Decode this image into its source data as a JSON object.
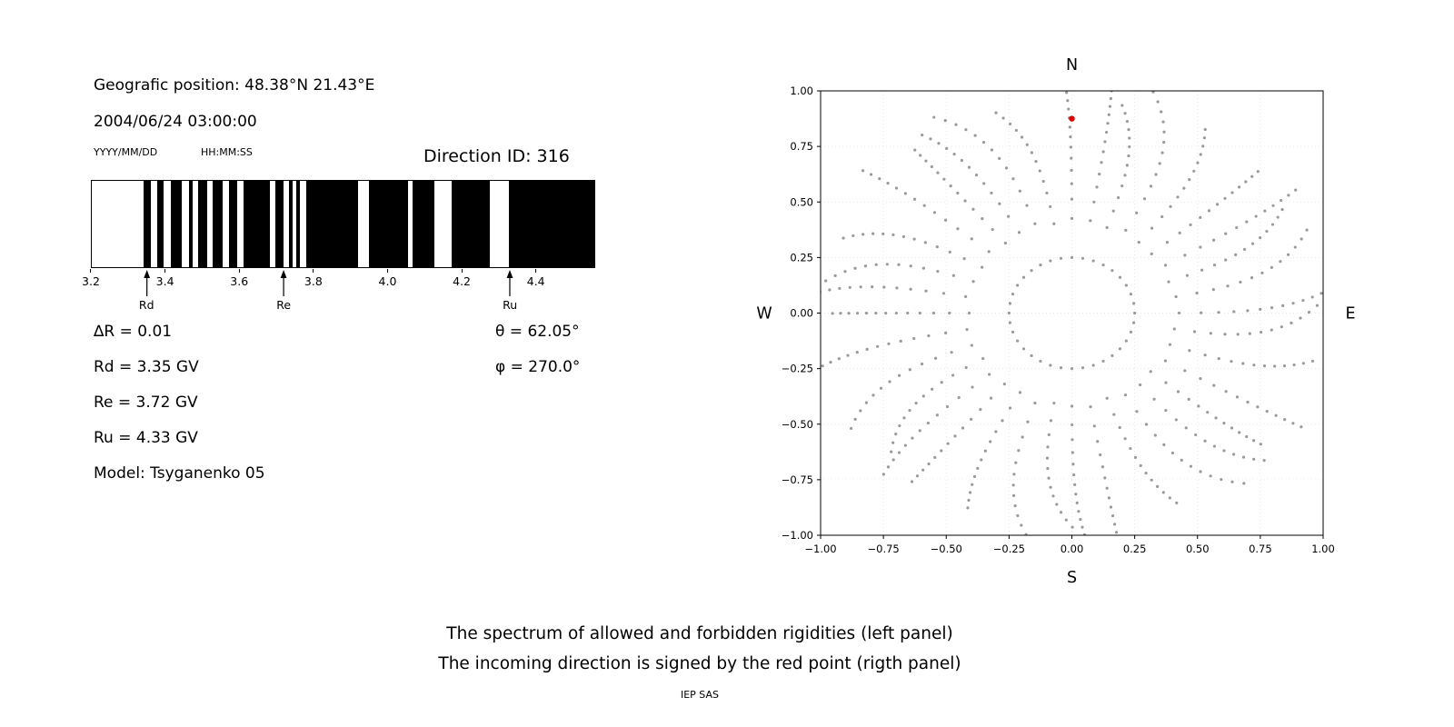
{
  "page": {
    "background": "#ffffff"
  },
  "left_panel": {
    "geographic_position": "Geografic position: 48.38°N 21.43°E",
    "datetime": "2004/06/24 03:00:00",
    "date_format_hint": "YYYY/MM/DD",
    "time_format_hint": "HH:MM:SS",
    "direction_id": "Direction ID: 316",
    "delta_r": "∆R = 0.01",
    "rd": "Rd = 3.35 GV",
    "re": "Re = 3.72 GV",
    "ru": "Ru = 4.33 GV",
    "model": "Model: Tsyganenko 05",
    "theta": "θ = 62.05°",
    "phi": "φ = 270.0°"
  },
  "caption": {
    "line1": "The spectrum of allowed and forbidden rigidities (left panel)",
    "line2": "The incoming direction is signed by the red point (rigth panel)",
    "credit": "IEP SAS"
  },
  "chart_data": [
    {
      "type": "bar",
      "description": "Spectrum of allowed (white) and forbidden (black) rigidities in GV",
      "x_range": [
        3.2,
        4.56
      ],
      "x_tick_values": [
        3.2,
        3.4,
        3.6,
        3.8,
        4.0,
        4.2,
        4.4
      ],
      "x_tick_labels": [
        "3.2",
        "3.4",
        "3.6",
        "3.8",
        "4.0",
        "4.2",
        "4.4"
      ],
      "band_color": "#000000",
      "forbidden_bands": [
        [
          3.34,
          3.36
        ],
        [
          3.377,
          3.395
        ],
        [
          3.413,
          3.443
        ],
        [
          3.462,
          3.472
        ],
        [
          3.487,
          3.512
        ],
        [
          3.526,
          3.554
        ],
        [
          3.571,
          3.594
        ],
        [
          3.61,
          3.682
        ],
        [
          3.697,
          3.718
        ],
        [
          3.734,
          3.744
        ],
        [
          3.753,
          3.764
        ],
        [
          3.78,
          3.92
        ],
        [
          3.95,
          4.055
        ],
        [
          4.068,
          4.126
        ],
        [
          4.174,
          4.278
        ],
        [
          4.33,
          4.56
        ]
      ],
      "markers": [
        {
          "label": "Rd",
          "value": 3.35
        },
        {
          "label": "Re",
          "value": 3.72
        },
        {
          "label": "Ru",
          "value": 4.33
        }
      ]
    },
    {
      "type": "scatter",
      "description": "Asymptotic incoming directions; red point marks the incoming direction",
      "xlim": [
        -1,
        1
      ],
      "ylim": [
        -1,
        1
      ],
      "x_ticks": [
        -1,
        -0.75,
        -0.5,
        -0.25,
        0,
        0.25,
        0.5,
        0.75,
        1
      ],
      "y_ticks": [
        -1,
        -0.75,
        -0.5,
        -0.25,
        0,
        0.25,
        0.5,
        0.75,
        1
      ],
      "tick_labels": [
        "−1.00",
        "−0.75",
        "−0.50",
        "−0.25",
        "0.00",
        "0.25",
        "0.50",
        "0.75",
        "1.00"
      ],
      "compass": {
        "north": "N",
        "south": "S",
        "west": "W",
        "east": "E"
      },
      "grid": true,
      "grid_color": "#e2e2e2",
      "dot_color": "#9a9a9a",
      "spokes": {
        "count": 36,
        "inner_radius": 0.25,
        "outer_radius": 1.0,
        "dots_per_spoke": 14,
        "radius_power": 0.58,
        "curve_deg": 12
      },
      "red_point": {
        "x": 0.0,
        "y": 0.875,
        "color": "#e00000"
      }
    }
  ]
}
